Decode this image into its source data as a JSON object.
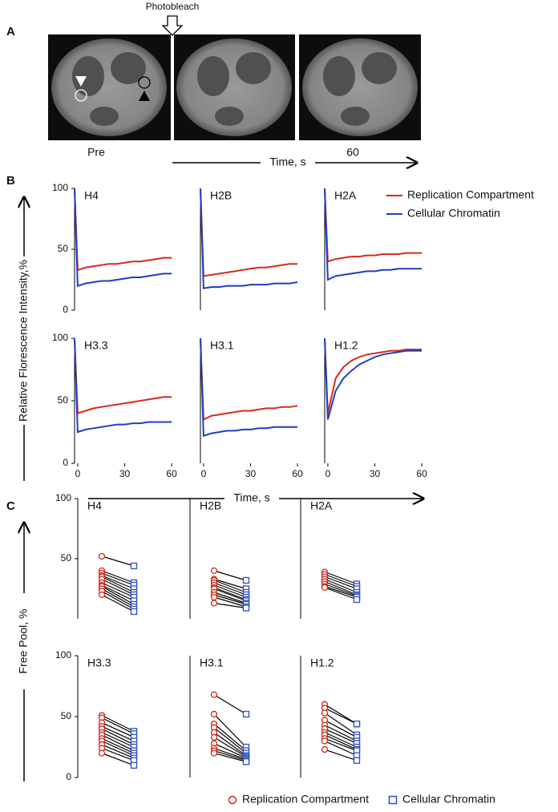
{
  "figure": {
    "panel_a": {
      "label": "A",
      "annotation": "Photobleach",
      "frame_labels": [
        "Pre",
        "60"
      ],
      "time_label": "Time, s"
    },
    "panel_b": {
      "label": "B",
      "y_label": "Relative Florescence Intensity,%",
      "x_label": "Time, s",
      "legend": [
        {
          "name": "Replication Compartment",
          "color": "#d62a1e"
        },
        {
          "name": "Cellular Chromatin",
          "color": "#1f3fbf"
        }
      ]
    },
    "panel_c": {
      "label": "C",
      "y_label": "Free Pool, %",
      "legend": [
        {
          "name": "Replication Compartment",
          "color": "#cc2a1a",
          "marker": "circle"
        },
        {
          "name": "Cellular Chromatin",
          "color": "#2e4fc4",
          "marker": "square"
        }
      ]
    }
  },
  "chart_data": [
    {
      "type": "line",
      "title": "H4",
      "x": [
        -2,
        0,
        5,
        10,
        15,
        20,
        25,
        30,
        35,
        40,
        45,
        50,
        55,
        60
      ],
      "xlim": [
        -2,
        62
      ],
      "ylim": [
        0,
        100
      ],
      "yticks": [
        0,
        50,
        100
      ],
      "series": [
        {
          "color": "#d62a1e",
          "values": [
            100,
            33,
            35,
            36,
            37,
            38,
            38,
            39,
            40,
            40,
            41,
            42,
            43,
            43
          ]
        },
        {
          "color": "#1f3fbf",
          "values": [
            100,
            20,
            22,
            23,
            24,
            24,
            25,
            26,
            27,
            27,
            28,
            29,
            30,
            30
          ]
        }
      ]
    },
    {
      "type": "line",
      "title": "H2B",
      "x": [
        -2,
        0,
        5,
        10,
        15,
        20,
        25,
        30,
        35,
        40,
        45,
        50,
        55,
        60
      ],
      "xlim": [
        -2,
        62
      ],
      "ylim": [
        0,
        100
      ],
      "series": [
        {
          "color": "#d62a1e",
          "values": [
            100,
            28,
            29,
            30,
            31,
            32,
            33,
            34,
            35,
            35,
            36,
            37,
            38,
            38
          ]
        },
        {
          "color": "#1f3fbf",
          "values": [
            100,
            18,
            19,
            19,
            20,
            20,
            20,
            21,
            21,
            21,
            22,
            22,
            22,
            23
          ]
        }
      ]
    },
    {
      "type": "line",
      "title": "H2A",
      "x": [
        -2,
        0,
        5,
        10,
        15,
        20,
        25,
        30,
        35,
        40,
        45,
        50,
        55,
        60
      ],
      "xlim": [
        -2,
        62
      ],
      "ylim": [
        0,
        100
      ],
      "series": [
        {
          "color": "#d62a1e",
          "values": [
            100,
            40,
            42,
            43,
            44,
            44,
            45,
            45,
            46,
            46,
            46,
            47,
            47,
            47
          ]
        },
        {
          "color": "#1f3fbf",
          "values": [
            100,
            25,
            28,
            29,
            30,
            31,
            32,
            32,
            33,
            33,
            34,
            34,
            34,
            34
          ]
        }
      ]
    },
    {
      "type": "line",
      "title": "H3.3",
      "x": [
        -2,
        0,
        5,
        10,
        15,
        20,
        25,
        30,
        35,
        40,
        45,
        50,
        55,
        60
      ],
      "xlim": [
        -2,
        62
      ],
      "ylim": [
        0,
        100
      ],
      "yticks": [
        0,
        50,
        100
      ],
      "xticks": [
        0,
        30,
        60
      ],
      "series": [
        {
          "color": "#d62a1e",
          "values": [
            100,
            40,
            42,
            44,
            45,
            46,
            47,
            48,
            49,
            50,
            51,
            52,
            53,
            53
          ]
        },
        {
          "color": "#1f3fbf",
          "values": [
            100,
            25,
            27,
            28,
            29,
            30,
            31,
            31,
            32,
            32,
            33,
            33,
            33,
            33
          ]
        }
      ]
    },
    {
      "type": "line",
      "title": "H3.1",
      "x": [
        -2,
        0,
        5,
        10,
        15,
        20,
        25,
        30,
        35,
        40,
        45,
        50,
        55,
        60
      ],
      "xlim": [
        -2,
        62
      ],
      "ylim": [
        0,
        100
      ],
      "xticks": [
        0,
        30,
        60
      ],
      "series": [
        {
          "color": "#d62a1e",
          "values": [
            100,
            35,
            38,
            39,
            40,
            41,
            42,
            42,
            43,
            44,
            44,
            45,
            45,
            46
          ]
        },
        {
          "color": "#1f3fbf",
          "values": [
            100,
            22,
            24,
            25,
            26,
            26,
            27,
            27,
            28,
            28,
            29,
            29,
            29,
            29
          ]
        }
      ]
    },
    {
      "type": "line",
      "title": "H1.2",
      "x": [
        -2,
        0,
        5,
        10,
        15,
        20,
        25,
        30,
        35,
        40,
        45,
        50,
        55,
        60
      ],
      "xlim": [
        -2,
        62
      ],
      "ylim": [
        0,
        100
      ],
      "xticks": [
        0,
        30,
        60
      ],
      "series": [
        {
          "color": "#d62a1e",
          "values": [
            100,
            40,
            68,
            77,
            82,
            85,
            87,
            88,
            89,
            90,
            90,
            91,
            91,
            91
          ]
        },
        {
          "color": "#1f3fbf",
          "values": [
            100,
            35,
            58,
            68,
            74,
            79,
            82,
            85,
            87,
            88,
            89,
            90,
            90,
            90
          ]
        }
      ]
    },
    {
      "type": "slope",
      "title": "H4",
      "ylim": [
        0,
        100
      ],
      "yticks": [
        50,
        100
      ],
      "series": [
        {
          "color": "#cc2a1a",
          "marker": "circle",
          "values": [
            52,
            40,
            38,
            36,
            35,
            33,
            30,
            28,
            27,
            25,
            23,
            20
          ]
        },
        {
          "color": "#2e4fc4",
          "marker": "square",
          "values": [
            44,
            30,
            28,
            25,
            22,
            20,
            18,
            15,
            12,
            10,
            8,
            6
          ]
        }
      ]
    },
    {
      "type": "slope",
      "title": "H2B",
      "ylim": [
        0,
        100
      ],
      "series": [
        {
          "color": "#cc2a1a",
          "marker": "circle",
          "values": [
            40,
            33,
            32,
            30,
            28,
            26,
            25,
            22,
            20,
            18,
            13
          ]
        },
        {
          "color": "#2e4fc4",
          "marker": "square",
          "values": [
            32,
            25,
            22,
            20,
            18,
            16,
            15,
            13,
            12,
            10,
            9
          ]
        }
      ]
    },
    {
      "type": "slope",
      "title": "H2A",
      "ylim": [
        0,
        100
      ],
      "series": [
        {
          "color": "#cc2a1a",
          "marker": "circle",
          "values": [
            39,
            37,
            35,
            33,
            31,
            29,
            27,
            26
          ]
        },
        {
          "color": "#2e4fc4",
          "marker": "square",
          "values": [
            29,
            27,
            25,
            22,
            20,
            19,
            18,
            16
          ]
        }
      ]
    },
    {
      "type": "slope",
      "title": "H3.3",
      "ylim": [
        0,
        100
      ],
      "yticks": [
        0,
        50,
        100
      ],
      "series": [
        {
          "color": "#cc2a1a",
          "marker": "circle",
          "values": [
            51,
            49,
            45,
            42,
            40,
            37,
            35,
            32,
            30,
            27,
            24,
            20
          ]
        },
        {
          "color": "#2e4fc4",
          "marker": "square",
          "values": [
            38,
            36,
            33,
            30,
            27,
            25,
            22,
            20,
            18,
            16,
            14,
            10
          ]
        }
      ]
    },
    {
      "type": "slope",
      "title": "H3.1",
      "ylim": [
        0,
        100
      ],
      "series": [
        {
          "color": "#cc2a1a",
          "marker": "circle",
          "values": [
            68,
            52,
            44,
            41,
            37,
            33,
            28,
            24,
            22,
            20
          ]
        },
        {
          "color": "#2e4fc4",
          "marker": "square",
          "values": [
            52,
            25,
            22,
            20,
            18,
            17,
            16,
            15,
            14,
            13
          ]
        }
      ]
    },
    {
      "type": "slope",
      "title": "H1.2",
      "ylim": [
        0,
        100
      ],
      "series": [
        {
          "color": "#cc2a1a",
          "marker": "circle",
          "values": [
            60,
            57,
            53,
            47,
            43,
            40,
            37,
            35,
            32,
            30,
            23
          ]
        },
        {
          "color": "#2e4fc4",
          "marker": "square",
          "values": [
            44,
            44,
            35,
            33,
            30,
            28,
            25,
            23,
            22,
            18,
            14
          ]
        }
      ]
    }
  ]
}
